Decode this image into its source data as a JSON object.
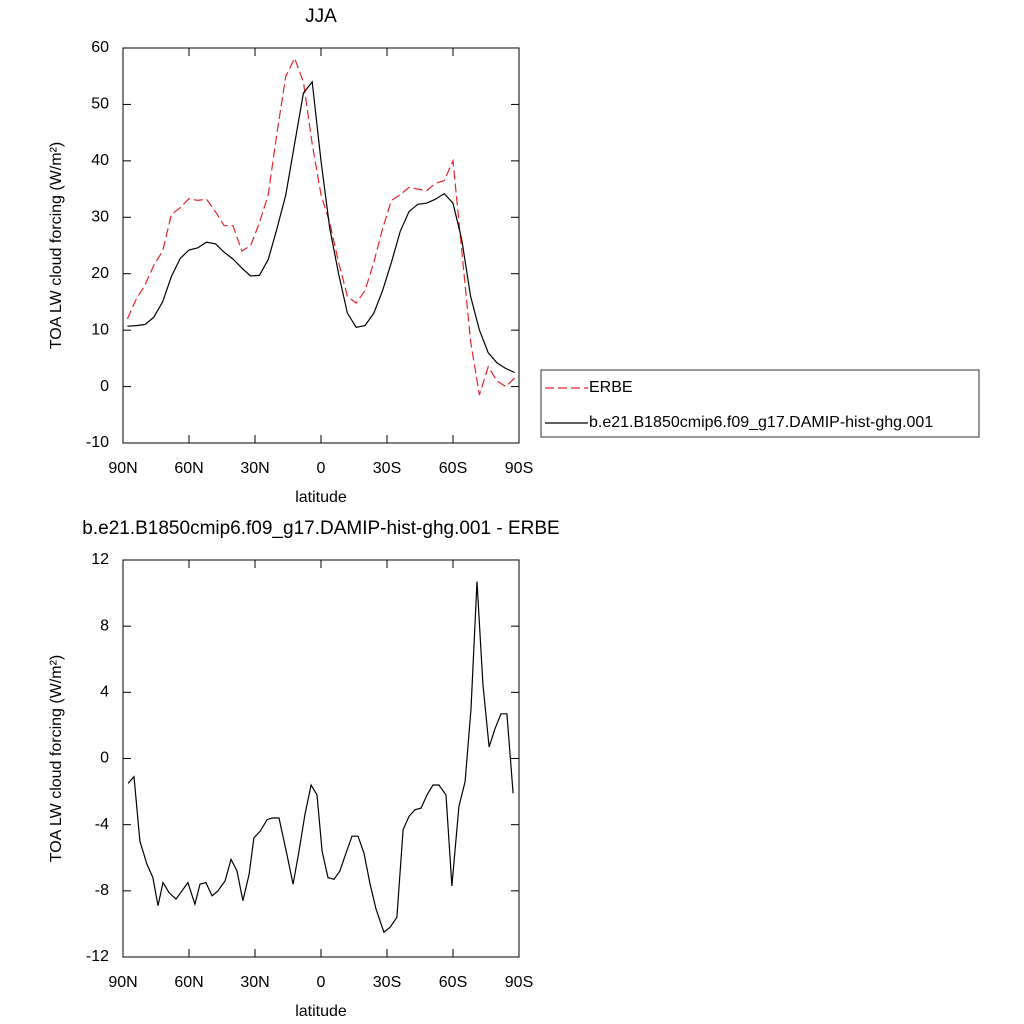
{
  "chart_data": [
    {
      "type": "line",
      "title": "JJA",
      "xlabel": "latitude",
      "ylabel": "TOA LW cloud forcing (W/m²)",
      "xlim": [
        90,
        -90
      ],
      "ylim": [
        -10,
        60
      ],
      "xticks": [
        {
          "value": 90,
          "label": "90N"
        },
        {
          "value": 60,
          "label": "60N"
        },
        {
          "value": 30,
          "label": "30N"
        },
        0,
        {
          "value": -30,
          "label": "30S"
        },
        {
          "value": -60,
          "label": "60S"
        },
        {
          "value": -90,
          "label": "90S"
        }
      ],
      "yticks": [
        -10,
        0,
        10,
        20,
        30,
        40,
        50,
        60
      ],
      "legend": "right",
      "x": [
        88,
        84,
        80,
        76,
        72,
        68,
        64,
        60,
        56,
        52,
        48,
        44,
        40,
        36,
        32,
        28,
        24,
        20,
        16,
        12,
        8,
        4,
        0,
        -4,
        -8,
        -12,
        -16,
        -20,
        -24,
        -28,
        -32,
        -36,
        -40,
        -44,
        -48,
        -52,
        -56,
        -60,
        -64,
        -68,
        -72,
        -76,
        -80,
        -84,
        -88
      ],
      "series": [
        {
          "name": "ERBE",
          "color": "#e8232a",
          "dashed": true,
          "values": [
            12,
            15.5,
            18,
            21.5,
            24,
            30.5,
            31.7,
            33.3,
            33,
            33.2,
            31,
            28.5,
            28.5,
            24,
            25,
            29,
            34,
            45,
            55,
            58.2,
            54,
            43,
            34,
            29,
            22,
            16,
            14.8,
            17,
            22,
            28,
            33,
            34,
            35.3,
            35,
            34.7,
            36,
            36.5,
            40,
            24,
            8,
            -1.5,
            3.5,
            1,
            0,
            1.5
          ]
        },
        {
          "name": "b.e21.B1850cmip6.f09_g17.DAMIP-hist-ghg.001",
          "color": "#000000",
          "dashed": false,
          "values": [
            10.7,
            10.8,
            11,
            12.3,
            15,
            19.5,
            22.7,
            24.2,
            24.6,
            25.6,
            25.3,
            23.8,
            22.6,
            21,
            19.6,
            19.7,
            22.5,
            28,
            34,
            43,
            52,
            54,
            40,
            28,
            20,
            13,
            10.5,
            10.8,
            13,
            17,
            22,
            27.5,
            31,
            32.3,
            32.5,
            33.2,
            34.2,
            32.5,
            26,
            16,
            10,
            6,
            4.2,
            3.2,
            2.5
          ]
        }
      ]
    },
    {
      "type": "line",
      "title": "b.e21.B1850cmip6.f09_g17.DAMIP-hist-ghg.001 - ERBE",
      "xlabel": "latitude",
      "ylabel": "TOA LW cloud forcing (W/m²)",
      "xlim": [
        90,
        -90
      ],
      "ylim": [
        -12,
        12
      ],
      "xticks": [
        {
          "value": 90,
          "label": "90N"
        },
        {
          "value": 60,
          "label": "60N"
        },
        {
          "value": 30,
          "label": "30N"
        },
        0,
        {
          "value": -30,
          "label": "30S"
        },
        {
          "value": -60,
          "label": "60S"
        },
        {
          "value": -90,
          "label": "90S"
        }
      ],
      "yticks": [
        -12,
        -8,
        -4,
        0,
        4,
        8,
        12
      ],
      "x": [
        87.7,
        85,
        82.3,
        79.1,
        76.4,
        74.1,
        71.8,
        69.1,
        65.9,
        63.2,
        60.5,
        57.3,
        55,
        52.3,
        49.5,
        46.8,
        43.6,
        40.9,
        38.2,
        35.5,
        32.7,
        30.5,
        27.7,
        24.5,
        22.3,
        19.1,
        15.5,
        12.7,
        10,
        7.3,
        4.5,
        1.8,
        -0.5,
        -3.2,
        -5.9,
        -8.6,
        -11.4,
        -14.1,
        -16.8,
        -19.5,
        -22.3,
        -25,
        -28.6,
        -31.4,
        -34.5,
        -37.3,
        -40,
        -42.7,
        -45.5,
        -48.2,
        -50.9,
        -53.6,
        -56.8,
        -59.5,
        -62.7,
        -65.5,
        -68.2,
        -70.9,
        -73.6,
        -76.4,
        -79.1,
        -81.8,
        -84.5,
        -87.3
      ],
      "series": [
        {
          "color": "#000000",
          "dashed": false,
          "values": [
            -1.5,
            -1.1,
            -5,
            -6.4,
            -7.2,
            -8.9,
            -7.5,
            -8.1,
            -8.5,
            -8,
            -7.5,
            -8.8,
            -7.6,
            -7.5,
            -8.3,
            -8,
            -7.4,
            -6.1,
            -6.8,
            -8.6,
            -7,
            -4.8,
            -4.4,
            -3.7,
            -3.6,
            -3.6,
            -5.8,
            -7.6,
            -5.6,
            -3.4,
            -1.6,
            -2.2,
            -5.6,
            -7.2,
            -7.3,
            -6.8,
            -5.7,
            -4.7,
            -4.7,
            -5.7,
            -7.6,
            -9.1,
            -10.5,
            -10.2,
            -9.6,
            -4.3,
            -3.5,
            -3.1,
            -3,
            -2.2,
            -1.6,
            -1.6,
            -2.2,
            -7.7,
            -2.9,
            -1.4,
            3,
            10.7,
            4.5,
            0.7,
            1.8,
            2.7,
            2.7,
            -2.1
          ]
        }
      ]
    }
  ]
}
